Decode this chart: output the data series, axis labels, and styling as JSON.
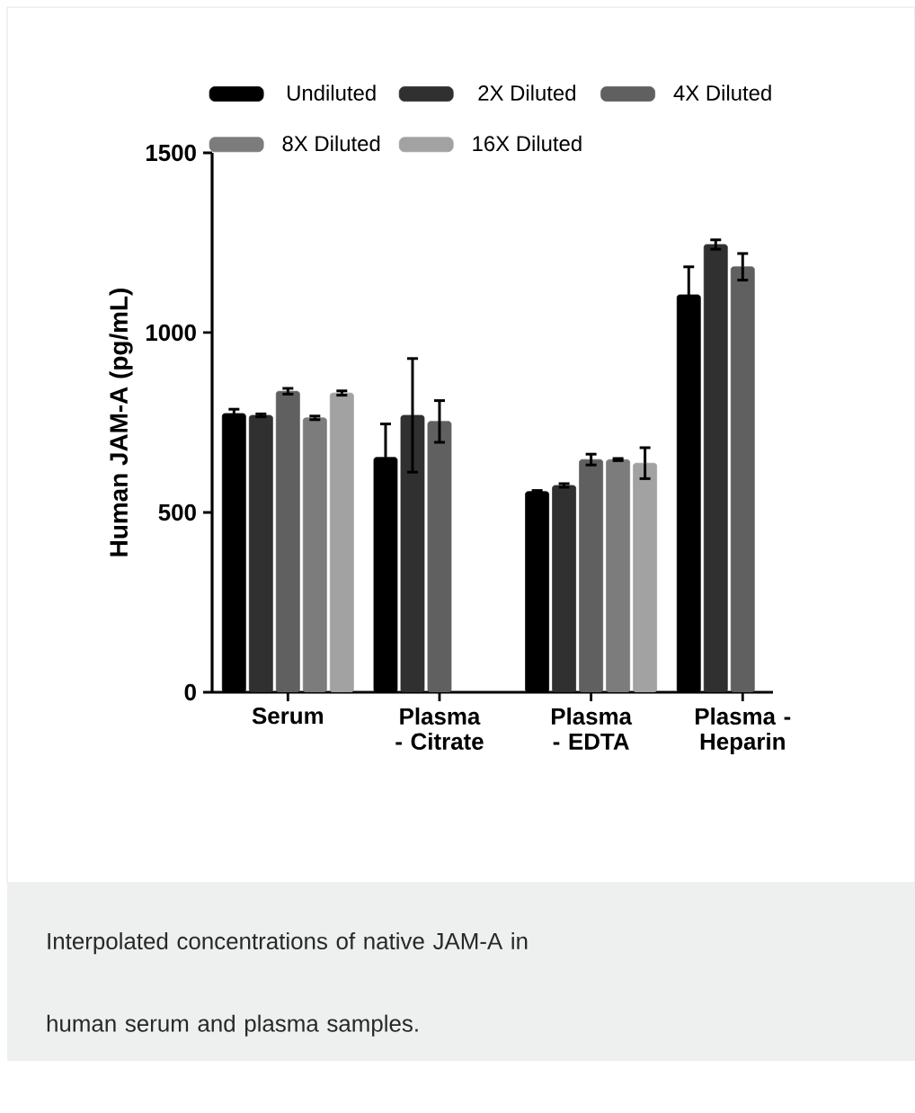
{
  "chart_data": {
    "type": "bar",
    "ylabel": "Human JAM-A (pg/mL)",
    "categories": [
      "Serum",
      "Plasma - Citrate",
      "Plasma - EDTA",
      "Plasma - Heparin"
    ],
    "series": [
      {
        "name": "Undiluted",
        "color": "#000000",
        "values": [
          775,
          653,
          558,
          1105
        ],
        "errors": [
          12,
          93,
          3,
          78
        ]
      },
      {
        "name": "2X Diluted",
        "color": "#303030",
        "values": [
          770,
          770,
          575,
          1245
        ],
        "errors": [
          4,
          158,
          5,
          13
        ]
      },
      {
        "name": "4X Diluted",
        "color": "#606060",
        "values": [
          837,
          753,
          647,
          1183
        ],
        "errors": [
          8,
          58,
          15,
          37
        ]
      },
      {
        "name": "8X Diluted",
        "color": "#7c7c7c",
        "values": [
          763,
          null,
          647,
          null
        ],
        "errors": [
          5,
          null,
          3,
          null
        ]
      },
      {
        "name": "16X Diluted",
        "color": "#a2a2a2",
        "values": [
          832,
          null,
          637,
          null
        ],
        "errors": [
          6,
          null,
          43,
          null
        ]
      }
    ],
    "ylim": [
      0,
      1500
    ],
    "yticks": [
      0,
      500,
      1000,
      1500
    ],
    "grid": false,
    "legend": "top",
    "annotations": [
      "Interpolated concentrations of native JAM-A in human serum and plasma samples."
    ]
  }
}
